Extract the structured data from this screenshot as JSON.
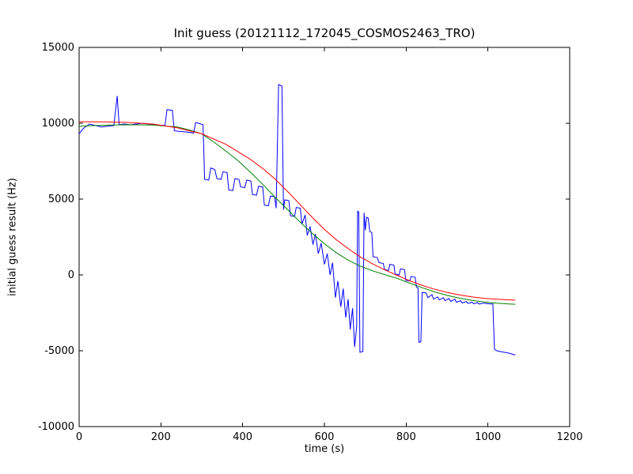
{
  "chart_data": {
    "type": "line",
    "title": "Init guess (20121112_172045_COSMOS2463_TRO)",
    "xlabel": "time (s)",
    "ylabel": "initial guess result (Hz)",
    "xlim": [
      0,
      1200
    ],
    "ylim": [
      -10000,
      15000
    ],
    "xticks": [
      0,
      200,
      400,
      600,
      800,
      1000,
      1200
    ],
    "yticks": [
      -10000,
      -5000,
      0,
      5000,
      10000,
      15000
    ],
    "grid": false,
    "legend": "none",
    "frame_color": "#000000",
    "background": "#ffffff",
    "series": [
      {
        "name": "blue",
        "color": "#0000ff",
        "points": [
          [
            0,
            9300
          ],
          [
            10,
            9650
          ],
          [
            25,
            9950
          ],
          [
            40,
            9850
          ],
          [
            55,
            9750
          ],
          [
            70,
            9800
          ],
          [
            85,
            9850
          ],
          [
            93,
            11800
          ],
          [
            98,
            9900
          ],
          [
            110,
            9950
          ],
          [
            125,
            9900
          ],
          [
            140,
            9950
          ],
          [
            155,
            10000
          ],
          [
            170,
            9950
          ],
          [
            185,
            9900
          ],
          [
            200,
            9870
          ],
          [
            210,
            9850
          ],
          [
            215,
            10900
          ],
          [
            228,
            10850
          ],
          [
            233,
            9500
          ],
          [
            245,
            9470
          ],
          [
            258,
            9430
          ],
          [
            270,
            9400
          ],
          [
            280,
            9350
          ],
          [
            285,
            10050
          ],
          [
            298,
            9950
          ],
          [
            303,
            9900
          ],
          [
            307,
            6300
          ],
          [
            317,
            6250
          ],
          [
            322,
            7050
          ],
          [
            332,
            6950
          ],
          [
            337,
            6350
          ],
          [
            347,
            6300
          ],
          [
            352,
            6800
          ],
          [
            362,
            6750
          ],
          [
            366,
            5600
          ],
          [
            376,
            5560
          ],
          [
            381,
            6350
          ],
          [
            391,
            6300
          ],
          [
            395,
            5800
          ],
          [
            405,
            5760
          ],
          [
            410,
            6250
          ],
          [
            420,
            6200
          ],
          [
            424,
            5300
          ],
          [
            434,
            5260
          ],
          [
            439,
            5850
          ],
          [
            449,
            5800
          ],
          [
            453,
            4600
          ],
          [
            463,
            4560
          ],
          [
            468,
            5200
          ],
          [
            478,
            5160
          ],
          [
            482,
            4400
          ],
          [
            488,
            12550
          ],
          [
            496,
            12450
          ],
          [
            500,
            4300
          ],
          [
            503,
            4950
          ],
          [
            513,
            4900
          ],
          [
            517,
            3900
          ],
          [
            527,
            3860
          ],
          [
            531,
            4450
          ],
          [
            541,
            4400
          ],
          [
            545,
            3350
          ],
          [
            553,
            3950
          ],
          [
            558,
            2600
          ],
          [
            565,
            3200
          ],
          [
            572,
            2000
          ],
          [
            578,
            2700
          ],
          [
            585,
            1400
          ],
          [
            592,
            2100
          ],
          [
            600,
            700
          ],
          [
            607,
            1400
          ],
          [
            614,
            0
          ],
          [
            620,
            800
          ],
          [
            627,
            -1500
          ],
          [
            633,
            -400
          ],
          [
            640,
            -2100
          ],
          [
            646,
            -900
          ],
          [
            652,
            -2800
          ],
          [
            658,
            -1600
          ],
          [
            663,
            -3600
          ],
          [
            669,
            -2200
          ],
          [
            674,
            -4750
          ],
          [
            679,
            -3400
          ],
          [
            681,
            4200
          ],
          [
            684,
            4150
          ],
          [
            687,
            -5100
          ],
          [
            694,
            -5050
          ],
          [
            697,
            4100
          ],
          [
            700,
            2950
          ],
          [
            703,
            3800
          ],
          [
            707,
            3750
          ],
          [
            711,
            2850
          ],
          [
            716,
            2800
          ],
          [
            719,
            1200
          ],
          [
            729,
            1150
          ],
          [
            734,
            800
          ],
          [
            744,
            760
          ],
          [
            747,
            350
          ],
          [
            757,
            300
          ],
          [
            760,
            700
          ],
          [
            770,
            650
          ],
          [
            773,
            50
          ],
          [
            783,
            0
          ],
          [
            786,
            400
          ],
          [
            796,
            350
          ],
          [
            799,
            -350
          ],
          [
            809,
            -400
          ],
          [
            812,
            -100
          ],
          [
            822,
            -150
          ],
          [
            825,
            -800
          ],
          [
            829,
            -850
          ],
          [
            831,
            -4450
          ],
          [
            836,
            -4400
          ],
          [
            839,
            -1150
          ],
          [
            849,
            -1200
          ],
          [
            853,
            -1500
          ],
          [
            863,
            -1300
          ],
          [
            867,
            -1600
          ],
          [
            877,
            -1450
          ],
          [
            881,
            -1650
          ],
          [
            891,
            -1500
          ],
          [
            895,
            -1700
          ],
          [
            905,
            -1550
          ],
          [
            909,
            -1750
          ],
          [
            919,
            -1600
          ],
          [
            923,
            -1800
          ],
          [
            933,
            -1700
          ],
          [
            937,
            -1850
          ],
          [
            947,
            -1750
          ],
          [
            951,
            -1880
          ],
          [
            961,
            -1800
          ],
          [
            965,
            -1900
          ],
          [
            975,
            -1830
          ],
          [
            979,
            -1920
          ],
          [
            989,
            -1860
          ],
          [
            1000,
            -1900
          ],
          [
            1012,
            -1920
          ],
          [
            1016,
            -4900
          ],
          [
            1022,
            -5000
          ],
          [
            1035,
            -5080
          ],
          [
            1050,
            -5150
          ],
          [
            1067,
            -5280
          ]
        ]
      },
      {
        "name": "green",
        "color": "#008000",
        "points": [
          [
            0,
            9800
          ],
          [
            60,
            9870
          ],
          [
            120,
            9900
          ],
          [
            180,
            9880
          ],
          [
            240,
            9750
          ],
          [
            270,
            9550
          ],
          [
            300,
            9300
          ],
          [
            330,
            8750
          ],
          [
            360,
            8150
          ],
          [
            390,
            7500
          ],
          [
            420,
            6750
          ],
          [
            450,
            5950
          ],
          [
            480,
            5100
          ],
          [
            510,
            4300
          ],
          [
            540,
            3500
          ],
          [
            570,
            2750
          ],
          [
            600,
            2050
          ],
          [
            630,
            1450
          ],
          [
            660,
            950
          ],
          [
            690,
            550
          ],
          [
            720,
            250
          ],
          [
            750,
            0
          ],
          [
            780,
            -250
          ],
          [
            810,
            -550
          ],
          [
            840,
            -850
          ],
          [
            870,
            -1120
          ],
          [
            900,
            -1350
          ],
          [
            930,
            -1530
          ],
          [
            960,
            -1670
          ],
          [
            990,
            -1780
          ],
          [
            1020,
            -1860
          ],
          [
            1050,
            -1910
          ],
          [
            1067,
            -1930
          ]
        ]
      },
      {
        "name": "red",
        "color": "#ff0000",
        "points": [
          [
            0,
            10100
          ],
          [
            60,
            10090
          ],
          [
            120,
            10050
          ],
          [
            180,
            9950
          ],
          [
            240,
            9700
          ],
          [
            300,
            9300
          ],
          [
            360,
            8600
          ],
          [
            420,
            7600
          ],
          [
            450,
            7000
          ],
          [
            480,
            6300
          ],
          [
            510,
            5500
          ],
          [
            540,
            4650
          ],
          [
            570,
            3800
          ],
          [
            600,
            3000
          ],
          [
            630,
            2300
          ],
          [
            660,
            1700
          ],
          [
            690,
            1150
          ],
          [
            720,
            700
          ],
          [
            750,
            300
          ],
          [
            780,
            -50
          ],
          [
            810,
            -400
          ],
          [
            840,
            -700
          ],
          [
            870,
            -950
          ],
          [
            900,
            -1150
          ],
          [
            930,
            -1320
          ],
          [
            960,
            -1450
          ],
          [
            990,
            -1540
          ],
          [
            1020,
            -1600
          ],
          [
            1050,
            -1640
          ],
          [
            1067,
            -1660
          ]
        ]
      }
    ]
  }
}
